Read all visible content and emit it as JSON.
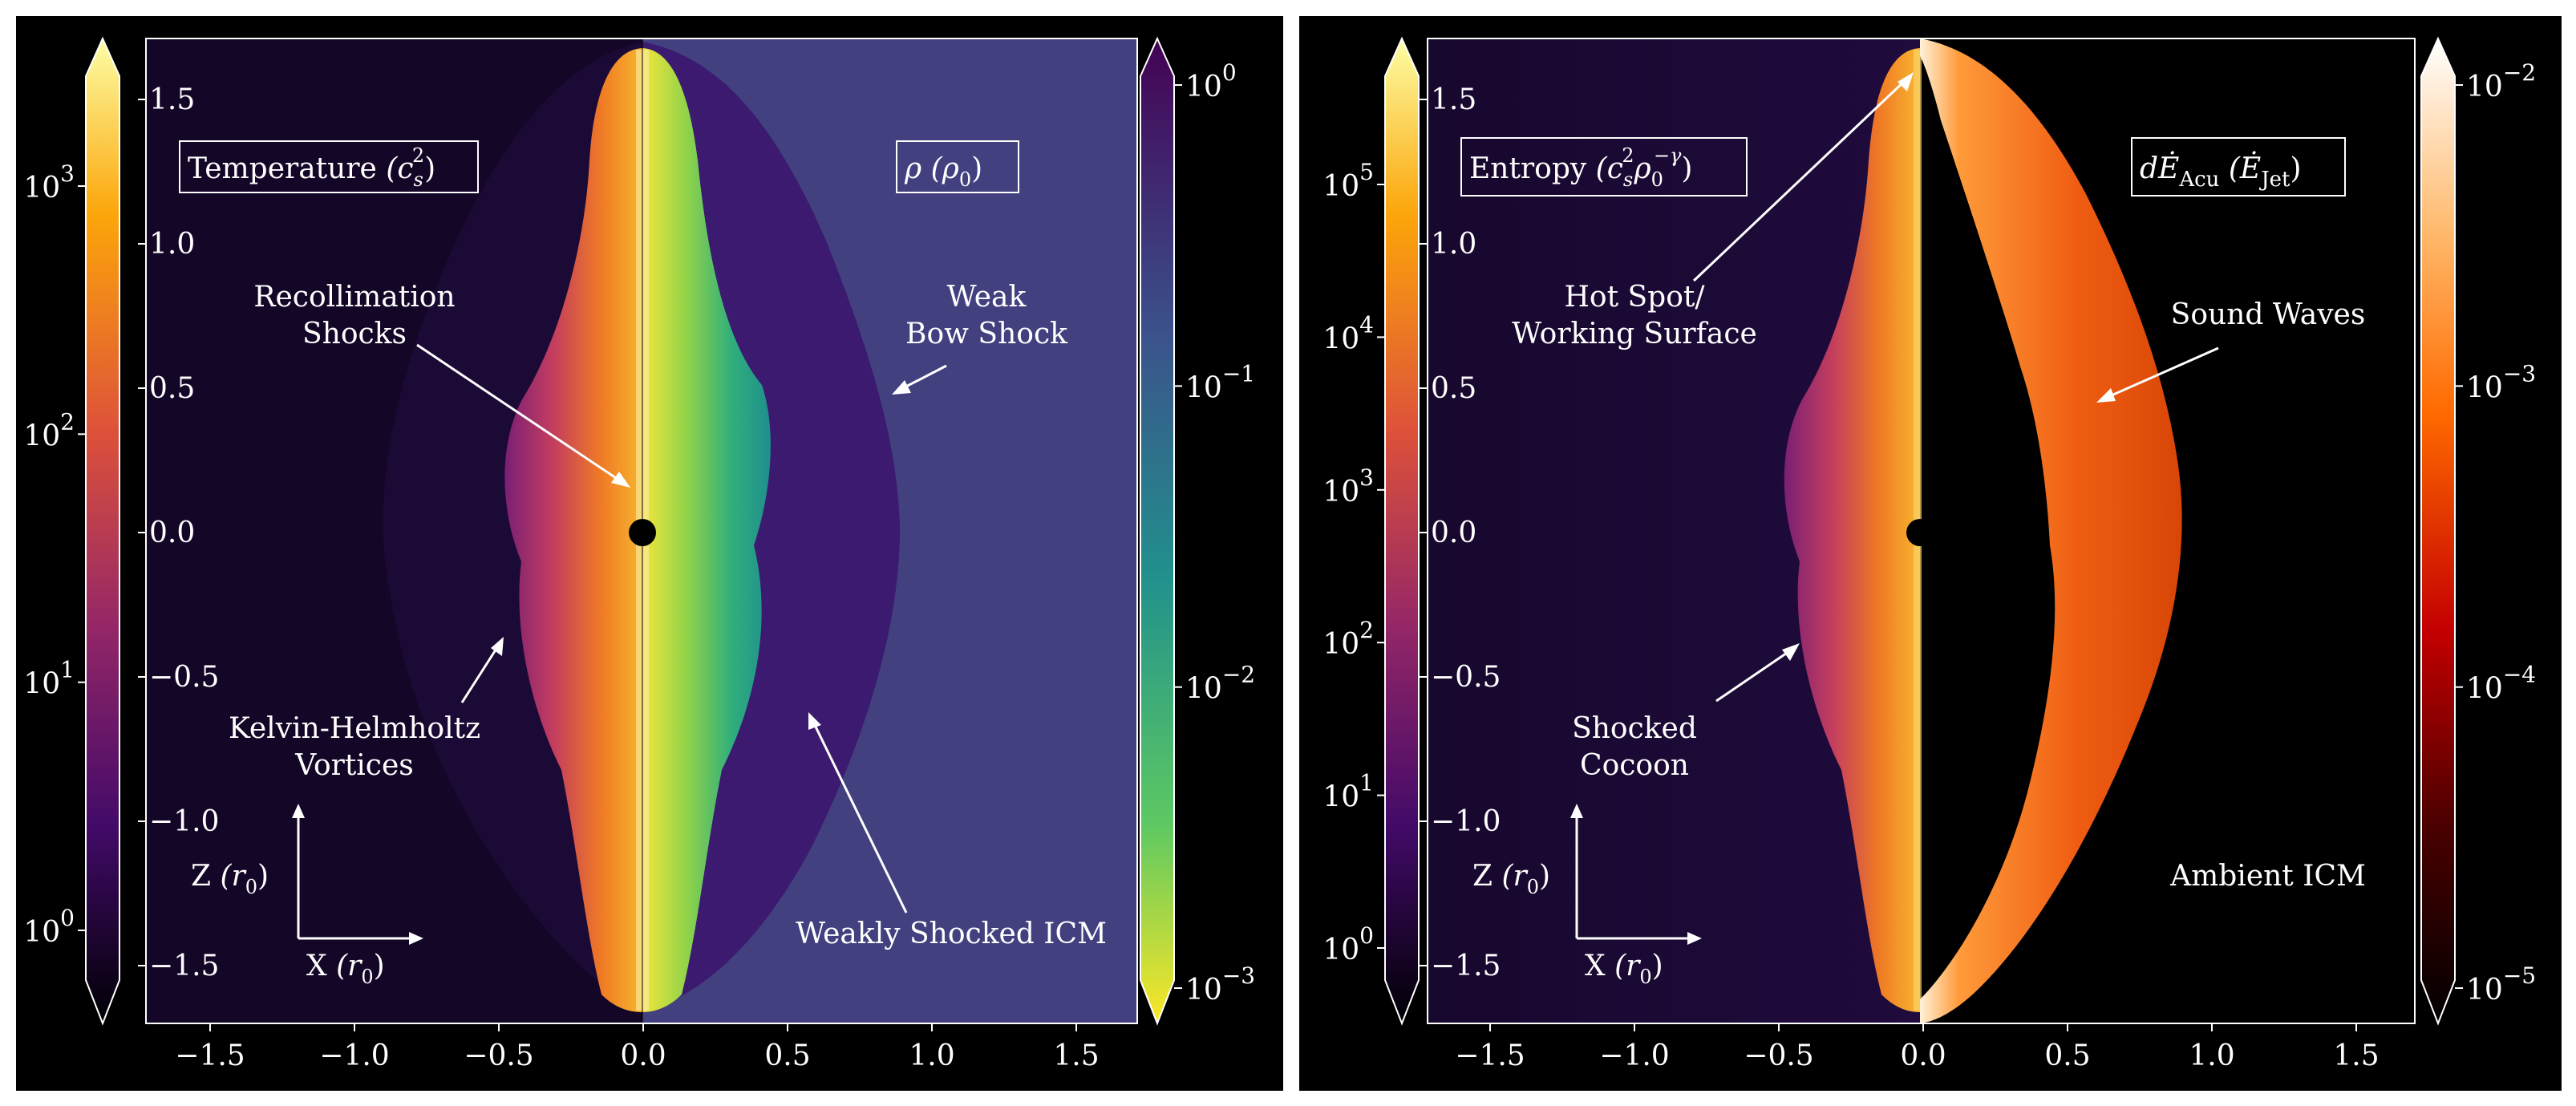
{
  "panels": [
    {
      "id": "left",
      "x_ticks": [
        "−1.5",
        "−1.0",
        "−0.5",
        "0.0",
        "0.5",
        "1.0",
        "1.5"
      ],
      "inner_y_ticks": [
        "1.5",
        "1.0",
        "0.5",
        "0.0",
        "−0.5",
        "−1.0",
        "−1.5"
      ],
      "left_colorbar": {
        "title_main": "Temperature",
        "title_math": "(c",
        "title_sub": "s",
        "title_sup": "2",
        "title_close": ")",
        "ticks": [
          {
            "base": "10",
            "exp": "3"
          },
          {
            "base": "10",
            "exp": "2"
          },
          {
            "base": "10",
            "exp": "1"
          },
          {
            "base": "10",
            "exp": "0"
          }
        ],
        "colors": [
          "#fcfea4",
          "#fca50a",
          "#dd513a",
          "#932667",
          "#420a68",
          "#000004"
        ]
      },
      "right_colorbar": {
        "title_main": "ρ",
        "title_unit": "(ρ",
        "title_unit_sub": "0",
        "title_close": ")",
        "ticks": [
          {
            "base": "10",
            "exp": "0"
          },
          {
            "base": "10",
            "exp": "−1"
          },
          {
            "base": "10",
            "exp": "−2"
          },
          {
            "base": "10",
            "exp": "−3"
          }
        ],
        "colors": [
          "#440154",
          "#3b528b",
          "#21918c",
          "#5ec962",
          "#fde725"
        ]
      },
      "annotations": {
        "recollimation_1": "Recollimation",
        "recollimation_2": "Shocks",
        "bow_1": "Weak",
        "bow_2": "Bow Shock",
        "kh_1": "Kelvin-Helmholtz",
        "kh_2": "Vortices",
        "icm": "Weakly Shocked ICM"
      },
      "axes": {
        "z_label": "Z",
        "x_label": "X",
        "unit_open": "(r",
        "unit_sub": "0",
        "unit_close": ")"
      }
    },
    {
      "id": "right",
      "x_ticks": [
        "−1.5",
        "−1.0",
        "−0.5",
        "0.0",
        "0.5",
        "1.0",
        "1.5"
      ],
      "inner_y_ticks": [
        "1.5",
        "1.0",
        "0.5",
        "0.0",
        "−0.5",
        "−1.0",
        "−1.5"
      ],
      "left_colorbar": {
        "title_main": "Entropy",
        "title_math": "(c",
        "title_sub": "s",
        "title_sup": "2",
        "title_rho": "ρ",
        "title_rho_sub": "0",
        "title_rho_sup": "−γ",
        "title_close": ")",
        "ticks": [
          {
            "base": "10",
            "exp": "5"
          },
          {
            "base": "10",
            "exp": "4"
          },
          {
            "base": "10",
            "exp": "3"
          },
          {
            "base": "10",
            "exp": "2"
          },
          {
            "base": "10",
            "exp": "1"
          },
          {
            "base": "10",
            "exp": "0"
          }
        ],
        "colors": [
          "#fcfea4",
          "#fca50a",
          "#dd513a",
          "#932667",
          "#420a68",
          "#000004"
        ]
      },
      "right_colorbar": {
        "title_main": "dĖ",
        "title_sub": "Acu",
        "title_unit": "(Ė",
        "title_unit_sub": "Jet",
        "title_close": ")",
        "ticks": [
          {
            "base": "10",
            "exp": "−2"
          },
          {
            "base": "10",
            "exp": "−3"
          },
          {
            "base": "10",
            "exp": "−4"
          },
          {
            "base": "10",
            "exp": "−5"
          }
        ],
        "colors": [
          "#ffffff",
          "#ff9a2a",
          "#ff5a00",
          "#c40000",
          "#4a0000",
          "#000000"
        ]
      },
      "annotations": {
        "hotspot_1": "Hot Spot/",
        "hotspot_2": "Working Surface",
        "sound": "Sound Waves",
        "cocoon_1": "Shocked",
        "cocoon_2": "Cocoon",
        "ambient": "Ambient ICM"
      },
      "axes": {
        "z_label": "Z",
        "x_label": "X",
        "unit_open": "(r",
        "unit_sub": "0",
        "unit_close": ")"
      }
    }
  ]
}
